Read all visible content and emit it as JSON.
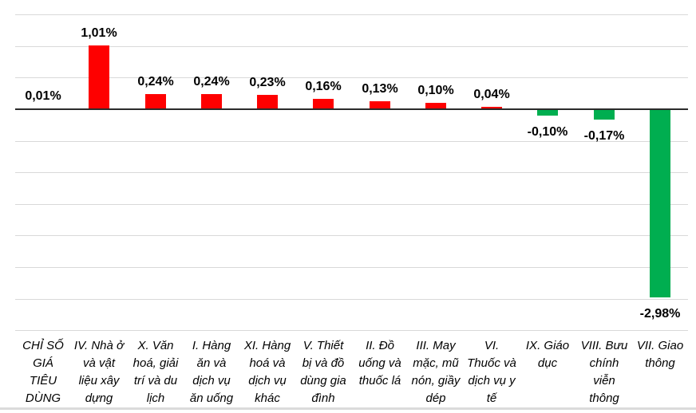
{
  "chart_data": {
    "type": "bar",
    "title": "",
    "xlabel": "",
    "ylabel": "",
    "unit": "%",
    "decimal_separator": ",",
    "ylim": [
      -3.5,
      1.5
    ],
    "gridline_step": 0.5,
    "grid": true,
    "legend": false,
    "categories": [
      "CHỈ SỐ\nGIÁ\nTIÊU\nDÙNG",
      "IV. Nhà ở\nvà vật\nliệu xây\ndựng",
      "X. Văn\nhoá, giải\ntrí và du\nlịch",
      "I. Hàng\năn và\ndịch vụ\năn uống",
      "XI. Hàng\nhoá và\ndịch vụ\nkhác",
      "V. Thiết\nbị và đồ\ndùng gia\nđình",
      "II. Đồ\nuống và\nthuốc lá",
      "III. May\nmặc, mũ\nnón, giầy\ndép",
      "VI.\nThuốc và\ndịch vụ y\ntế",
      "IX. Giáo\ndục",
      "VIII. Bưu\nchính\nviễn\nthông",
      "VII. Giao\nthông"
    ],
    "values": [
      0.01,
      1.01,
      0.24,
      0.24,
      0.23,
      0.16,
      0.13,
      0.1,
      0.04,
      -0.1,
      -0.17,
      -2.98
    ],
    "value_labels": [
      "0,01%",
      "1,01%",
      "0,24%",
      "0,24%",
      "0,23%",
      "0,16%",
      "0,13%",
      "0,10%",
      "0,04%",
      "-0,10%",
      "-0,17%",
      "-2,98%"
    ],
    "colors": {
      "positive_bar": "#FE0000",
      "negative_bar": "#00AE50",
      "gridline": "#D9D9D9",
      "zero_axis": "#2B2B2B",
      "value_label": "#000000",
      "category_label": "#000000",
      "bottom_rule": "#DBDBDB",
      "background": "#FFFFFF"
    }
  }
}
